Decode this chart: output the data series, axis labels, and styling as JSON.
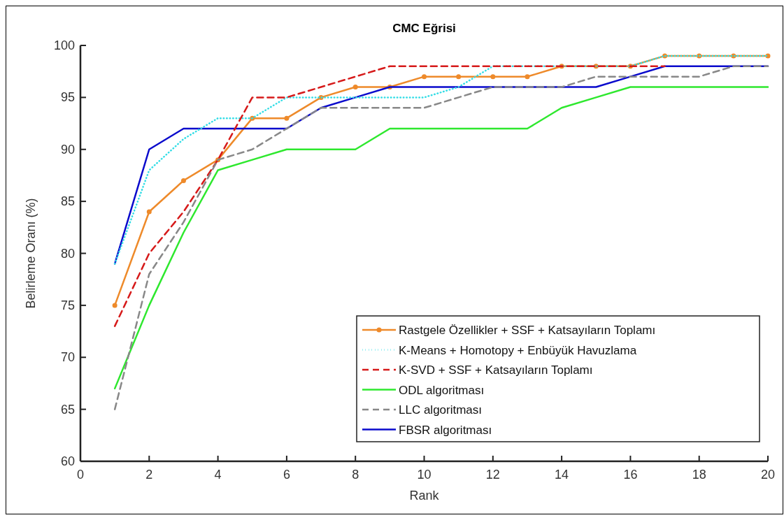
{
  "chart_data": {
    "type": "line",
    "title": "CMC Eğrisi",
    "xlabel": "Rank",
    "ylabel": "Belirleme Oranı (%)",
    "x": [
      1,
      2,
      3,
      4,
      5,
      6,
      7,
      8,
      9,
      10,
      11,
      12,
      13,
      14,
      15,
      16,
      17,
      18,
      19,
      20
    ],
    "xlim": [
      0,
      20
    ],
    "xticks": [
      0,
      2,
      4,
      6,
      8,
      10,
      12,
      14,
      16,
      18,
      20
    ],
    "ylim": [
      60,
      100
    ],
    "yticks": [
      60,
      65,
      70,
      75,
      80,
      85,
      90,
      95,
      100
    ],
    "grid": false,
    "legend": "bottom right",
    "series": [
      {
        "name": "Rastgele Özellikler + SSF + Katsayıların Toplamı",
        "color": "#ee8a2a",
        "line_style": "solid",
        "marker": "circle",
        "values": [
          75,
          84,
          87,
          89,
          93,
          93,
          95,
          96,
          96,
          97,
          97,
          97,
          97,
          98,
          98,
          98,
          99,
          99,
          99,
          99
        ]
      },
      {
        "name": "K-Means + Homotopy + Enbüyük Havuzlama",
        "color": "#33dde6",
        "line_style": "dotted",
        "values": [
          79,
          88,
          91,
          93,
          93,
          95,
          95,
          95,
          95,
          95,
          96,
          98,
          98,
          98,
          98,
          98,
          99,
          99,
          99,
          99
        ]
      },
      {
        "name": "K-SVD + SSF + Katsayıların Toplamı",
        "color": "#d61a1a",
        "line_style": "dashed",
        "values": [
          73,
          80,
          84,
          89,
          95,
          95,
          96,
          97,
          98,
          98,
          98,
          98,
          98,
          98,
          98,
          98,
          98,
          null,
          null,
          null
        ]
      },
      {
        "name": "ODL algoritması",
        "color": "#2ee82e",
        "line_style": "solid",
        "values": [
          67,
          75,
          82,
          88,
          89,
          90,
          90,
          90,
          92,
          92,
          92,
          92,
          92,
          94,
          95,
          96,
          96,
          96,
          96,
          96
        ]
      },
      {
        "name": "LLC algoritması",
        "color": "#888888",
        "line_style": "dashed",
        "values": [
          65,
          78,
          83,
          89,
          90,
          92,
          94,
          94,
          94,
          94,
          95,
          96,
          96,
          96,
          97,
          97,
          97,
          97,
          98,
          98
        ]
      },
      {
        "name": "FBSR algoritması",
        "color": "#0a0acc",
        "line_style": "solid",
        "values": [
          79,
          90,
          92,
          92,
          92,
          92,
          94,
          95,
          96,
          96,
          96,
          96,
          96,
          96,
          96,
          97,
          98,
          98,
          98,
          98
        ]
      }
    ]
  }
}
